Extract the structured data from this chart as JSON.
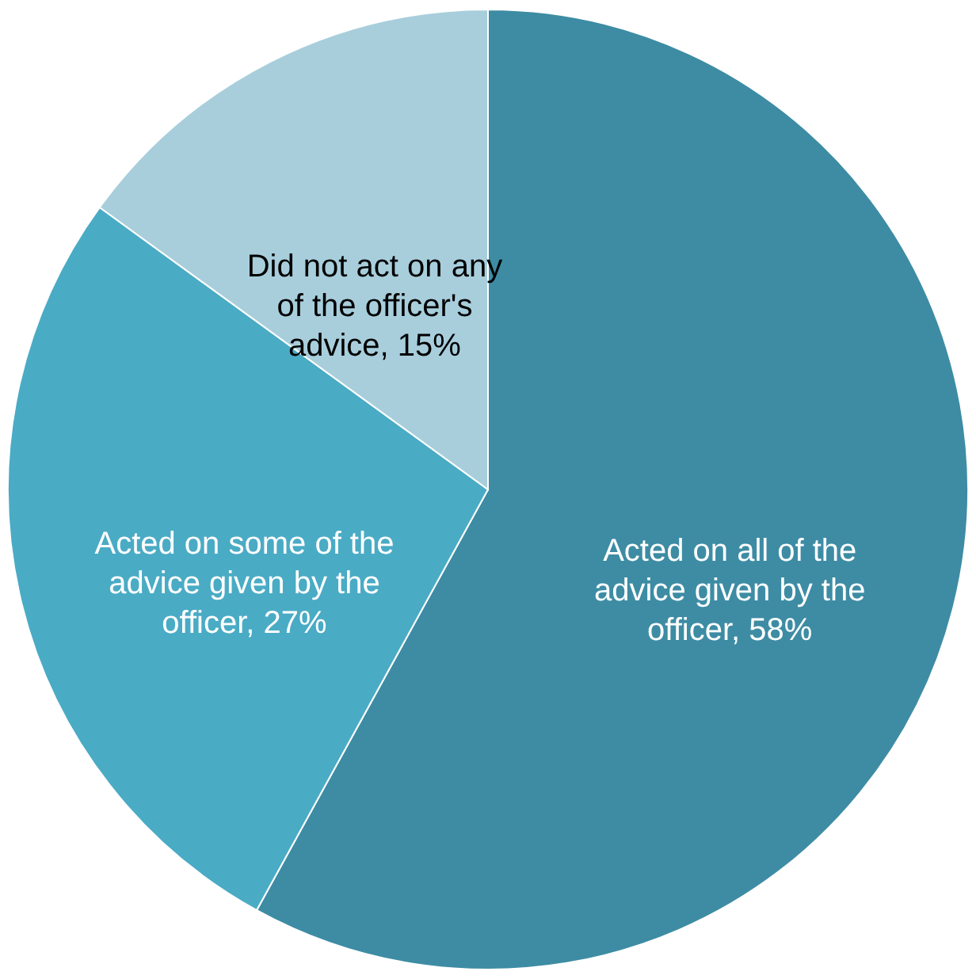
{
  "chart_data": {
    "type": "pie",
    "categories": [
      "Acted on all of the advice given by the officer, 58%",
      "Acted on some of the advice given by the officer, 27%",
      "Did not act on any of the officer's advice, 15%"
    ],
    "values": [
      58,
      27,
      15
    ],
    "colors": [
      "#3d8ca4",
      "#4aabc5",
      "#a8cedc"
    ]
  }
}
